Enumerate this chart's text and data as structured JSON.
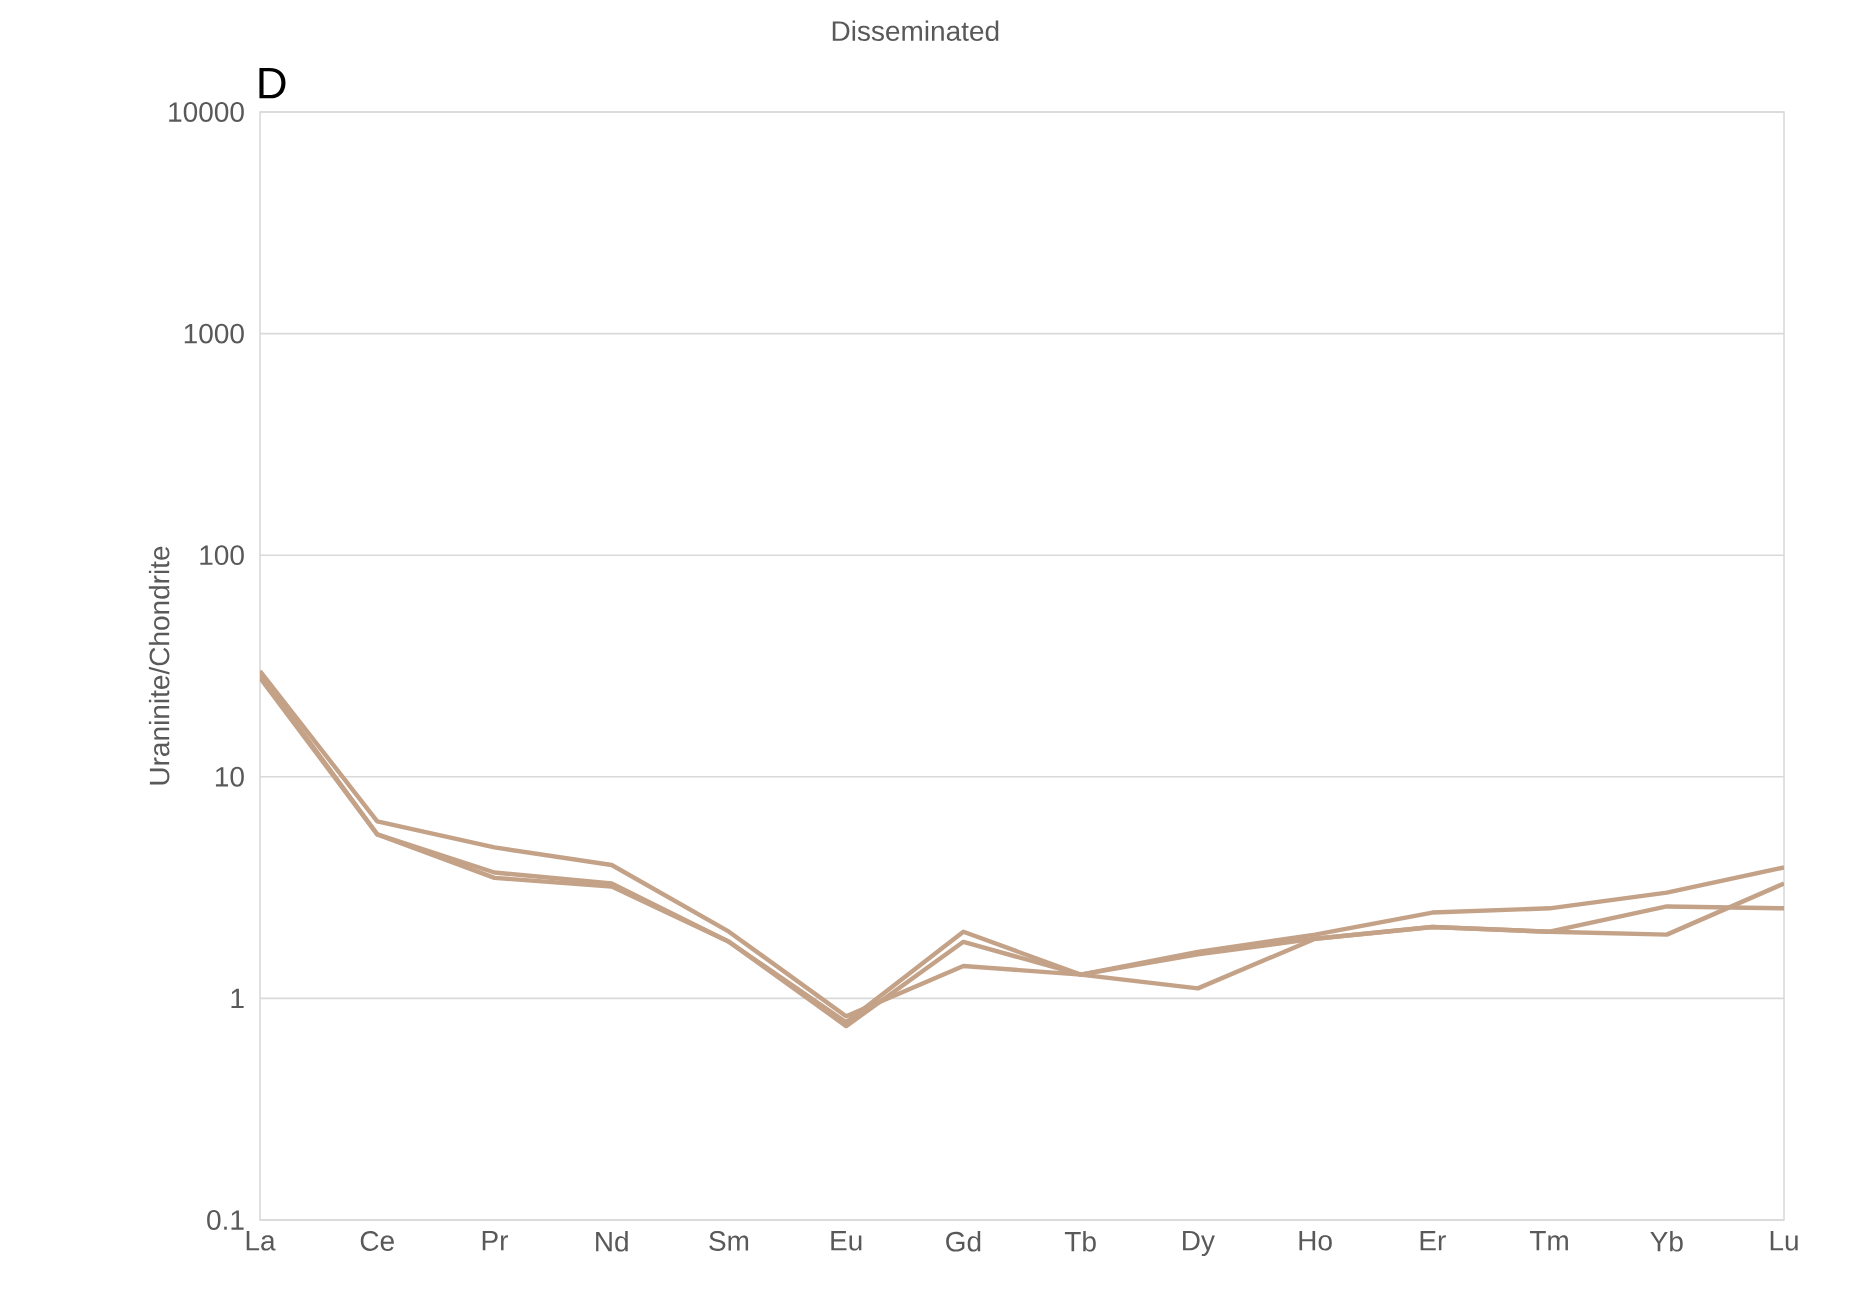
{
  "chart_data": {
    "type": "line",
    "title": "Disseminated",
    "ylabel": "Uraninite/Chondrite",
    "annotations": [
      "D"
    ],
    "categories": [
      "La",
      "Ce",
      "Pr",
      "Nd",
      "Sm",
      "Eu",
      "Gd",
      "Tb",
      "Dy",
      "Ho",
      "Er",
      "Tm",
      "Yb",
      "Lu"
    ],
    "series": [
      {
        "color": "#c4a288",
        "values": [
          30,
          6.3,
          4.8,
          4.0,
          2.0,
          0.83,
          1.4,
          1.28,
          1.62,
          1.94,
          2.44,
          2.55,
          3.0,
          3.9
        ]
      },
      {
        "color": "#c4a288",
        "values": [
          29,
          5.5,
          3.7,
          3.3,
          1.8,
          0.78,
          2.0,
          1.28,
          1.58,
          1.86,
          2.1,
          2.0,
          2.6,
          2.55
        ]
      },
      {
        "color": "#c4a288",
        "values": [
          28,
          5.5,
          3.5,
          3.2,
          1.8,
          0.75,
          1.8,
          1.28,
          1.11,
          1.86,
          2.1,
          2.0,
          1.94,
          3.3
        ]
      }
    ],
    "log": "y",
    "ylim": [
      0.1,
      10000
    ],
    "yticks": [
      0.1,
      1,
      10,
      100,
      1000,
      10000
    ],
    "grid": "y",
    "legend": false,
    "marker": "none",
    "line_style": "solid"
  }
}
